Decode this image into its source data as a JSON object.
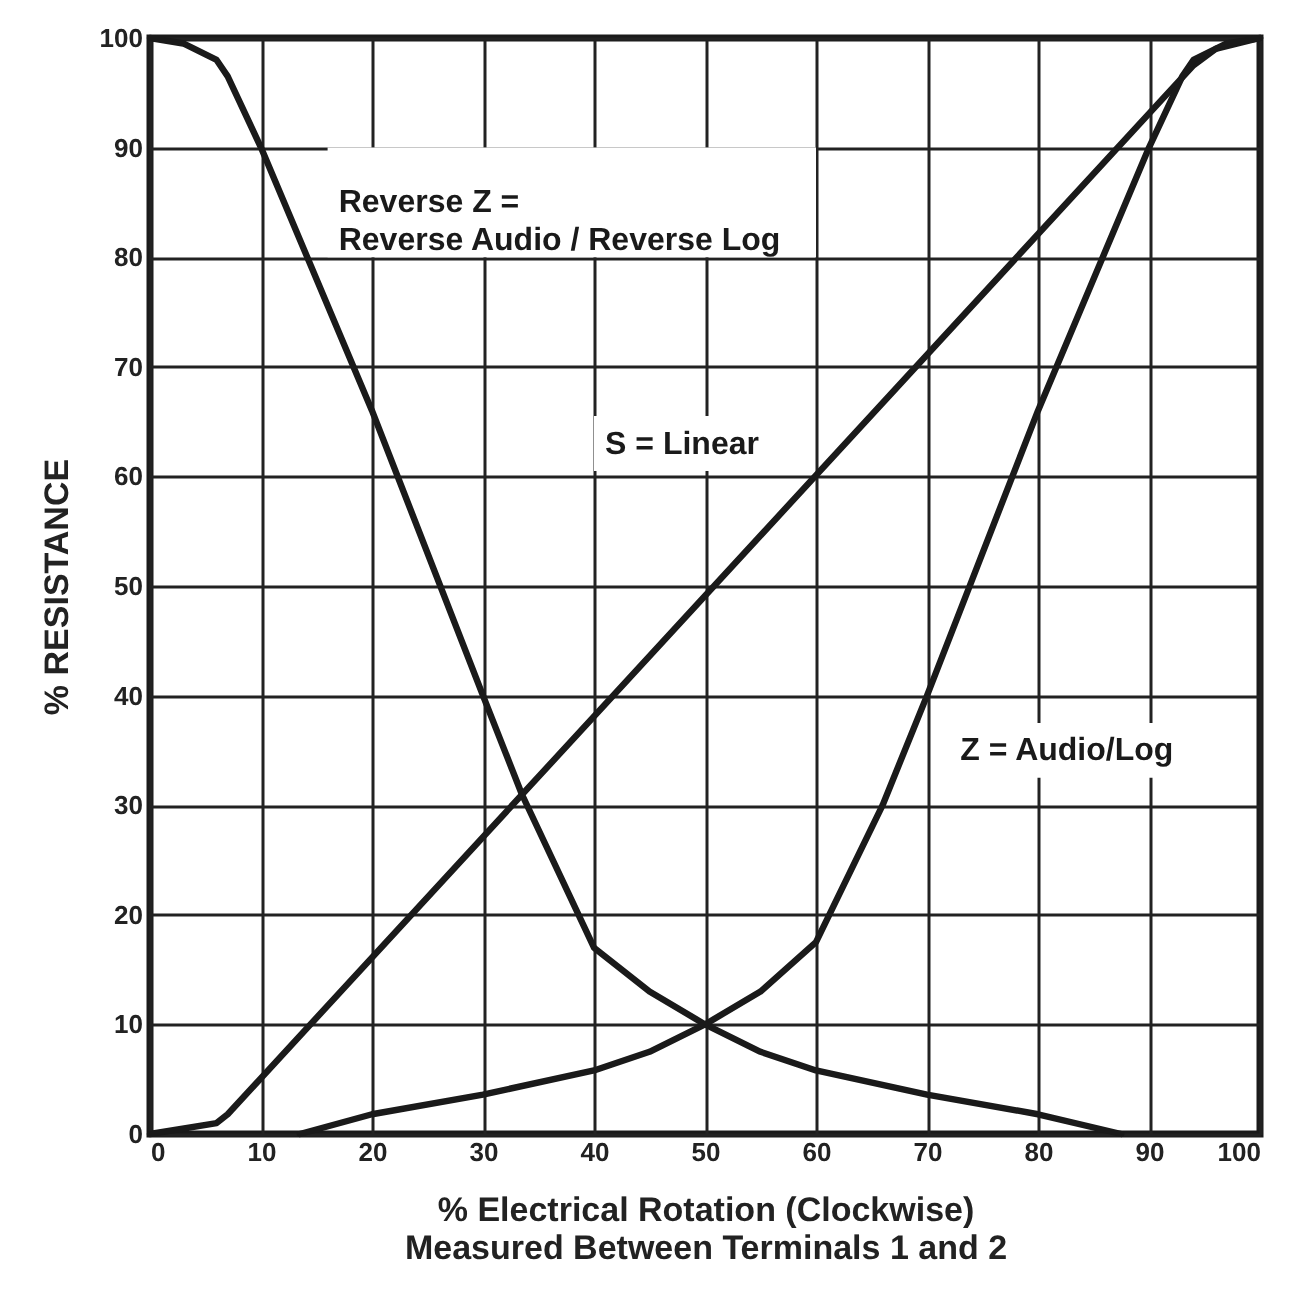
{
  "chart_data": {
    "type": "line",
    "xlabel": "% Electrical Rotation (Clockwise)\nMeasured Between Terminals 1 and 2",
    "ylabel": "% RESISTANCE",
    "xlim": [
      0,
      100
    ],
    "ylim": [
      0,
      100
    ],
    "xticks": [
      0,
      10,
      20,
      30,
      40,
      50,
      60,
      70,
      80,
      90,
      100
    ],
    "yticks": [
      0,
      10,
      20,
      30,
      40,
      50,
      60,
      70,
      80,
      90,
      100
    ],
    "grid": true,
    "marker": "none",
    "line_style": "solid",
    "series": [
      {
        "name": "Reverse Z =\nReverse Audio / Reverse Log",
        "color": "#1a1a1a",
        "x": [
          0,
          3,
          6,
          7,
          10,
          20,
          30,
          33.5,
          40,
          45,
          50,
          55,
          60,
          70,
          80,
          87.5
        ],
        "values": [
          100,
          99.5,
          98,
          96.5,
          90,
          66,
          40,
          31,
          17,
          13,
          10,
          7.5,
          5.8,
          3.6,
          1.8,
          0
        ]
      },
      {
        "name": "S = Linear",
        "color": "#1a1a1a",
        "x": [
          0,
          6,
          7,
          94,
          96,
          100
        ],
        "values": [
          0,
          1,
          1.8,
          97.5,
          99,
          100
        ]
      },
      {
        "name": "Z = Audio/Log",
        "color": "#1a1a1a",
        "x": [
          13.5,
          20,
          30,
          40,
          45,
          50,
          55,
          60,
          66,
          70,
          80,
          90,
          93,
          94,
          97,
          100
        ],
        "values": [
          0,
          1.8,
          3.6,
          5.8,
          7.5,
          10,
          13,
          17.5,
          30,
          40,
          66,
          90,
          96.5,
          98,
          99.5,
          100
        ]
      }
    ]
  }
}
